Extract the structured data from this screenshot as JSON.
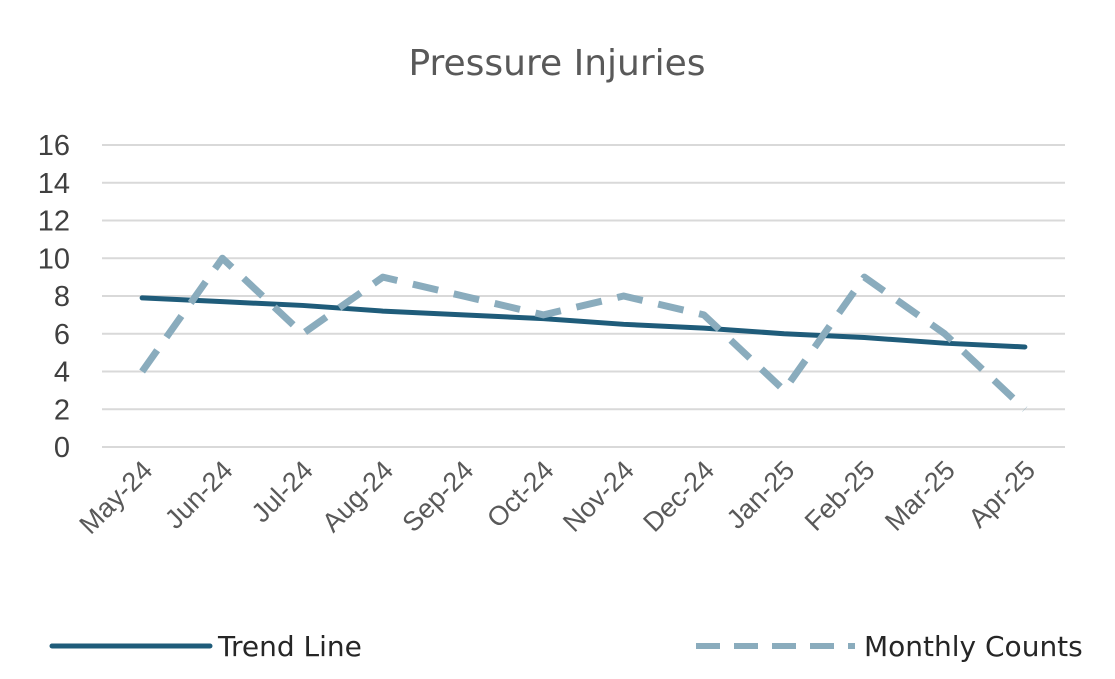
{
  "chart_data": {
    "type": "line",
    "title": "Pressure Injuries",
    "xlabel": "",
    "ylabel": "",
    "categories": [
      "May-24",
      "Jun-24",
      "Jul-24",
      "Aug-24",
      "Sep-24",
      "Oct-24",
      "Nov-24",
      "Dec-24",
      "Jan-25",
      "Feb-25",
      "Mar-25",
      "Apr-25"
    ],
    "ylim": [
      0,
      16
    ],
    "yticks": [
      0,
      2,
      4,
      6,
      8,
      10,
      12,
      14,
      16
    ],
    "grid": true,
    "legend_position": "bottom",
    "series": [
      {
        "name": "Trend Line",
        "style": "solid",
        "color": "#1f5c7a",
        "values": [
          7.9,
          7.7,
          7.5,
          7.2,
          7.0,
          6.8,
          6.5,
          6.3,
          6.0,
          5.8,
          5.5,
          5.3
        ]
      },
      {
        "name": "Monthly Counts",
        "style": "dashed",
        "color": "#8aacbd",
        "values": [
          4,
          10,
          6,
          9,
          8,
          7,
          8,
          7,
          3,
          9,
          6,
          2
        ]
      }
    ]
  }
}
